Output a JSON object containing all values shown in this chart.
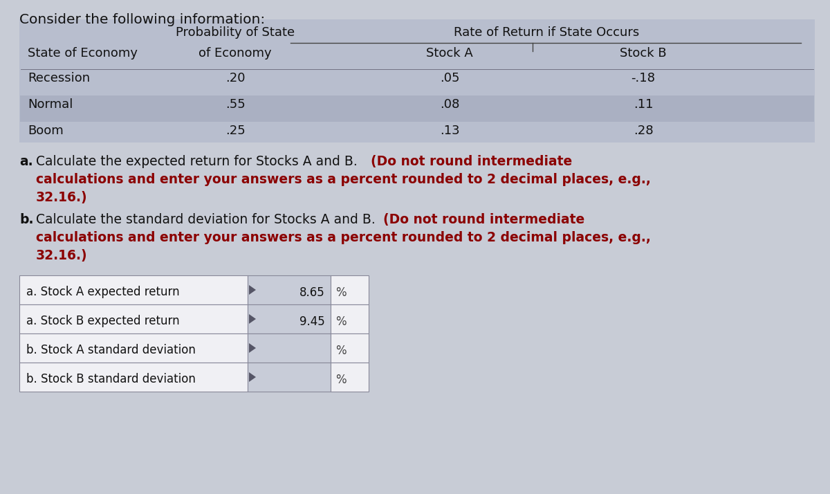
{
  "title": "Consider the following information:",
  "page_bg": "#c8ccd6",
  "table_bg": "#b8bece",
  "table_alt_row_bg": "#aab0c2",
  "header_bg": "#b0b8cc",
  "table_rows": [
    [
      "Recession",
      ".20",
      ".05",
      "-.18"
    ],
    [
      "Normal",
      ".55",
      ".08",
      ".11"
    ],
    [
      "Boom",
      ".25",
      ".13",
      ".28"
    ]
  ],
  "answer_labels": [
    "a. Stock A expected return",
    "a. Stock B expected return",
    "b. Stock A standard deviation",
    "b. Stock B standard deviation"
  ],
  "answer_values": [
    "8.65",
    "9.45",
    "",
    ""
  ],
  "answer_cell_bg": "#c8ccd8",
  "answer_border": "#888899"
}
